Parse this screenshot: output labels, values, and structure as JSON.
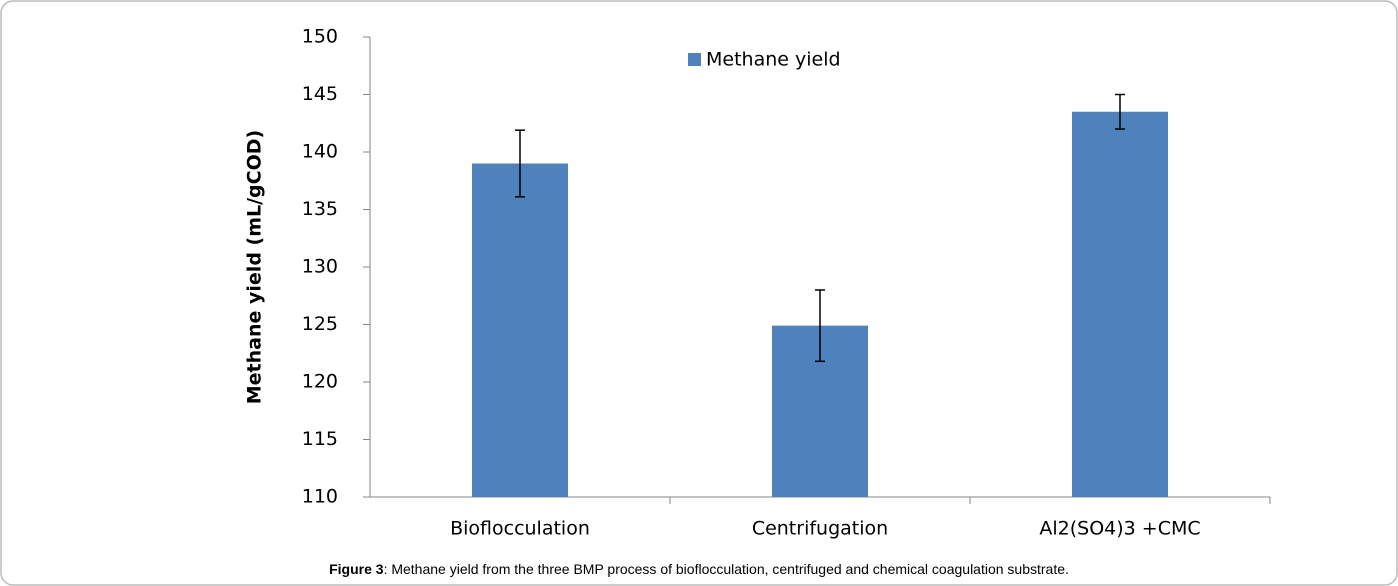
{
  "chart_data": {
    "type": "bar",
    "y_label": "Methane yield (mL/gCOD)",
    "categories": [
      "Bioflocculation",
      "Centrifugation",
      "Al2(SO4)3 +CMC"
    ],
    "series": [
      {
        "name": "Methane yield",
        "color": "#4f81bd",
        "values": [
          139,
          124.9,
          143.5
        ],
        "errors": [
          2.9,
          3.1,
          1.5
        ]
      }
    ],
    "ylim": [
      110,
      150
    ],
    "yticks": [
      110,
      115,
      120,
      125,
      130,
      135,
      140,
      145,
      150
    ],
    "grid": false,
    "legend": "top"
  },
  "caption": {
    "label": "Figure 3",
    "text": ": Methane yield from the three BMP process of bioflocculation, centrifuged and chemical coagulation substrate."
  }
}
